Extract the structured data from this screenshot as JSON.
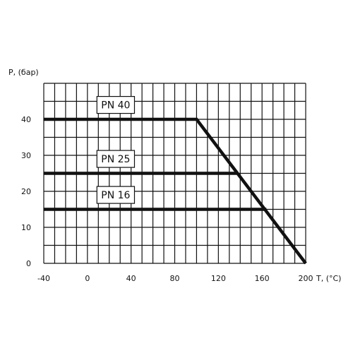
{
  "chart_data": {
    "type": "line",
    "title": "",
    "xlabel": "T, (°C)",
    "ylabel": "P, (бар)",
    "xlim": [
      -40,
      200
    ],
    "ylim": [
      0,
      50
    ],
    "x_ticks": [
      {
        "value": -40,
        "label": "-40"
      },
      {
        "value": 0,
        "label": "0"
      },
      {
        "value": 40,
        "label": "40"
      },
      {
        "value": 80,
        "label": "80"
      },
      {
        "value": 120,
        "label": "120"
      },
      {
        "value": 160,
        "label": "160"
      },
      {
        "value": 200,
        "label": "200"
      }
    ],
    "y_ticks": [
      {
        "value": 0,
        "label": "0"
      },
      {
        "value": 10,
        "label": "10"
      },
      {
        "value": 20,
        "label": "20"
      },
      {
        "value": 30,
        "label": "30"
      },
      {
        "value": 40,
        "label": "40"
      }
    ],
    "grid": true,
    "grid_x_step": 10,
    "grid_y_step": 5,
    "series": [
      {
        "name": "PN 40",
        "x": [
          -40,
          100,
          200
        ],
        "y": [
          40,
          40,
          0
        ],
        "label_at": {
          "x": 10,
          "y": 44
        }
      },
      {
        "name": "PN 25",
        "x": [
          -40,
          138
        ],
        "y": [
          25,
          25
        ],
        "label_at": {
          "x": 10,
          "y": 29
        }
      },
      {
        "name": "PN 16",
        "x": [
          -40,
          164
        ],
        "y": [
          15,
          15
        ],
        "label_at": {
          "x": 10,
          "y": 19
        }
      }
    ],
    "line_color": "#111111",
    "grid_color": "#111111"
  }
}
